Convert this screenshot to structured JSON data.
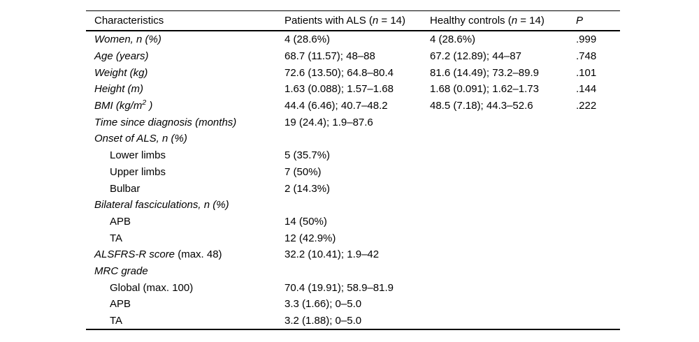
{
  "page": {
    "background": "#ffffff",
    "text_color": "#000000",
    "rule_color": "#000000"
  },
  "table": {
    "headers": [
      {
        "name": "characteristics",
        "segments": [
          {
            "t": "Characteristics",
            "s": "r"
          }
        ]
      },
      {
        "name": "patients-als",
        "segments": [
          {
            "t": "Patients with ALS (",
            "s": "r"
          },
          {
            "t": "n",
            "s": "i"
          },
          {
            "t": " = 14)",
            "s": "r"
          }
        ]
      },
      {
        "name": "healthy-controls",
        "segments": [
          {
            "t": "Healthy controls (",
            "s": "r"
          },
          {
            "t": "n",
            "s": "i"
          },
          {
            "t": " = 14)",
            "s": "r"
          }
        ]
      },
      {
        "name": "p-value",
        "segments": [
          {
            "t": "P",
            "s": "i"
          }
        ]
      }
    ],
    "rows": [
      {
        "indent": false,
        "label": [
          {
            "t": "Women, n (%)",
            "s": "i"
          }
        ],
        "cells": [
          "4 (28.6%)",
          "4 (28.6%)",
          ".999"
        ]
      },
      {
        "indent": false,
        "label": [
          {
            "t": "Age (years)",
            "s": "i"
          }
        ],
        "cells": [
          "68.7 (11.57); 48–88",
          "67.2 (12.89); 44–87",
          ".748"
        ]
      },
      {
        "indent": false,
        "label": [
          {
            "t": "Weight (kg)",
            "s": "i"
          }
        ],
        "cells": [
          "72.6 (13.50); 64.8–80.4",
          "81.6 (14.49); 73.2–89.9",
          ".101"
        ]
      },
      {
        "indent": false,
        "label": [
          {
            "t": "Height (m)",
            "s": "i"
          }
        ],
        "cells": [
          "1.63 (0.088); 1.57–1.68",
          "1.68 (0.091); 1.62–1.73",
          ".144"
        ]
      },
      {
        "indent": false,
        "label": [
          {
            "t": "BMI (kg/m",
            "s": "i"
          },
          {
            "t": "2",
            "s": "sup-i"
          },
          {
            "t": " )",
            "s": "i"
          }
        ],
        "cells": [
          "44.4 (6.46); 40.7–48.2",
          "48.5 (7.18); 44.3–52.6",
          ".222"
        ]
      },
      {
        "indent": false,
        "label": [
          {
            "t": "Time since diagnosis (months)",
            "s": "i"
          }
        ],
        "cells": [
          "19 (24.4); 1.9–87.6",
          "",
          ""
        ]
      },
      {
        "indent": false,
        "label": [
          {
            "t": "Onset of ALS, n (%)",
            "s": "i"
          }
        ],
        "cells": [
          "",
          "",
          ""
        ]
      },
      {
        "indent": true,
        "label": [
          {
            "t": "Lower limbs",
            "s": "r"
          }
        ],
        "cells": [
          "5 (35.7%)",
          "",
          ""
        ]
      },
      {
        "indent": true,
        "label": [
          {
            "t": "Upper limbs",
            "s": "r"
          }
        ],
        "cells": [
          "7 (50%)",
          "",
          ""
        ]
      },
      {
        "indent": true,
        "label": [
          {
            "t": "Bulbar",
            "s": "r"
          }
        ],
        "cells": [
          "2 (14.3%)",
          "",
          ""
        ]
      },
      {
        "indent": false,
        "label": [
          {
            "t": "Bilateral fasciculations, n (%)",
            "s": "i"
          }
        ],
        "cells": [
          "",
          "",
          ""
        ]
      },
      {
        "indent": true,
        "label": [
          {
            "t": "APB",
            "s": "r"
          }
        ],
        "cells": [
          "14 (50%)",
          "",
          ""
        ]
      },
      {
        "indent": true,
        "label": [
          {
            "t": "TA",
            "s": "r"
          }
        ],
        "cells": [
          "12 (42.9%)",
          "",
          ""
        ]
      },
      {
        "indent": false,
        "label": [
          {
            "t": "ALSFRS-R score",
            "s": "i"
          },
          {
            "t": " (max. 48)",
            "s": "r"
          }
        ],
        "cells": [
          "32.2 (10.41); 1.9–42",
          "",
          ""
        ]
      },
      {
        "indent": false,
        "label": [
          {
            "t": "MRC grade",
            "s": "i"
          }
        ],
        "cells": [
          "",
          "",
          ""
        ]
      },
      {
        "indent": true,
        "label": [
          {
            "t": "Global (max. 100)",
            "s": "r"
          }
        ],
        "cells": [
          "70.4 (19.91); 58.9–81.9",
          "",
          ""
        ]
      },
      {
        "indent": true,
        "label": [
          {
            "t": "APB",
            "s": "r"
          }
        ],
        "cells": [
          "3.3 (1.66); 0–5.0",
          "",
          ""
        ]
      },
      {
        "indent": true,
        "label": [
          {
            "t": "TA",
            "s": "r"
          }
        ],
        "cells": [
          "3.2 (1.88); 0–5.0",
          "",
          ""
        ]
      }
    ]
  }
}
